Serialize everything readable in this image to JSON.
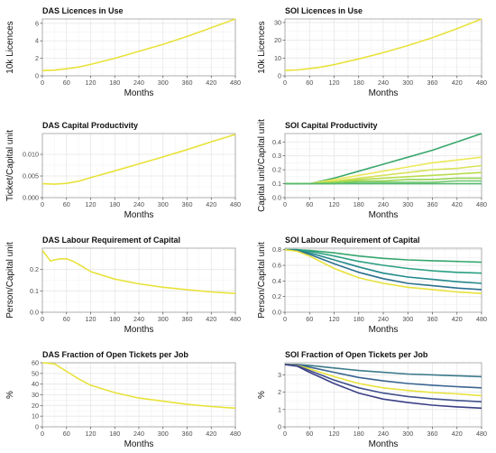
{
  "colors": {
    "yellow": "#e8e23a",
    "green_dark": "#3aa76d",
    "blue_dark": "#3b528b",
    "grid": "#e6e6e6",
    "panel_border": "#9e9e9e",
    "axis_text": "#4d4d4d"
  },
  "chart_data": [
    {
      "id": "das-licences",
      "type": "line",
      "title": "DAS Licences in Use",
      "xlabel": "Months",
      "ylabel": "10k Licences",
      "xlim": [
        0,
        480
      ],
      "ylim": [
        0,
        6.5
      ],
      "xticks": [
        0,
        60,
        120,
        180,
        240,
        300,
        360,
        420,
        480
      ],
      "yticks": [
        0,
        2,
        4,
        6
      ],
      "series": [
        {
          "color": "#e8e23a",
          "x": [
            0,
            30,
            60,
            90,
            120,
            180,
            240,
            300,
            360,
            420,
            480
          ],
          "y": [
            0.6,
            0.65,
            0.8,
            1.0,
            1.3,
            2.0,
            2.8,
            3.6,
            4.5,
            5.5,
            6.5
          ]
        }
      ]
    },
    {
      "id": "soi-licences",
      "type": "line",
      "title": "SOI Licences in Use",
      "xlabel": "Months",
      "ylabel": "10k Licences",
      "xlim": [
        0,
        480
      ],
      "ylim": [
        0,
        32
      ],
      "xticks": [
        0,
        60,
        120,
        180,
        240,
        300,
        360,
        420,
        480
      ],
      "yticks": [
        0,
        10,
        20,
        30
      ],
      "series": [
        {
          "color": "#e8e23a",
          "x": [
            0,
            30,
            60,
            90,
            120,
            180,
            240,
            300,
            360,
            420,
            480
          ],
          "y": [
            3.0,
            3.3,
            4.0,
            5.0,
            6.3,
            9.5,
            13.0,
            17.0,
            21.5,
            26.5,
            32.0
          ]
        }
      ]
    },
    {
      "id": "das-capital-productivity",
      "type": "line",
      "title": "DAS Capital Productivity",
      "xlabel": "Months",
      "ylabel": "Ticket/Capital unit",
      "xlim": [
        0,
        480
      ],
      "ylim": [
        0,
        0.0148
      ],
      "xticks": [
        0,
        60,
        120,
        180,
        240,
        300,
        360,
        420,
        480
      ],
      "yticks": [
        0,
        0.005,
        0.01
      ],
      "ytick_labels": [
        "0.000",
        "0.005",
        "0.010"
      ],
      "series": [
        {
          "color": "#e8e23a",
          "x": [
            0,
            30,
            60,
            90,
            120,
            180,
            240,
            300,
            360,
            420,
            480
          ],
          "y": [
            0.0032,
            0.0031,
            0.0033,
            0.0038,
            0.0046,
            0.0062,
            0.0078,
            0.0094,
            0.0111,
            0.0129,
            0.0146
          ]
        }
      ]
    },
    {
      "id": "soi-capital-productivity",
      "type": "line",
      "title": "SOI Capital Productivity",
      "xlabel": "Months",
      "ylabel": "Capital unit/Capital unit",
      "xlim": [
        0,
        480
      ],
      "ylim": [
        0,
        0.46
      ],
      "xticks": [
        0,
        60,
        120,
        180,
        240,
        300,
        360,
        420,
        480
      ],
      "yticks": [
        0,
        0.1,
        0.2,
        0.3,
        0.4
      ],
      "ytick_labels": [
        "0.0",
        "0.1",
        "0.2",
        "0.3",
        "0.4"
      ],
      "series": [
        {
          "color": "#3aa76d",
          "x": [
            0,
            60,
            120,
            180,
            240,
            300,
            360,
            420,
            480
          ],
          "y": [
            0.1,
            0.1,
            0.14,
            0.19,
            0.24,
            0.29,
            0.34,
            0.4,
            0.46
          ]
        },
        {
          "color": "#ece85a",
          "x": [
            0,
            60,
            120,
            180,
            240,
            300,
            360,
            420,
            480
          ],
          "y": [
            0.1,
            0.1,
            0.13,
            0.16,
            0.19,
            0.22,
            0.25,
            0.27,
            0.29
          ]
        },
        {
          "color": "#d8e25a",
          "x": [
            0,
            60,
            120,
            180,
            240,
            300,
            360,
            420,
            480
          ],
          "y": [
            0.1,
            0.1,
            0.12,
            0.14,
            0.16,
            0.18,
            0.2,
            0.21,
            0.23
          ]
        },
        {
          "color": "#b9dc4e",
          "x": [
            0,
            60,
            120,
            180,
            240,
            300,
            360,
            420,
            480
          ],
          "y": [
            0.1,
            0.1,
            0.11,
            0.13,
            0.14,
            0.15,
            0.16,
            0.17,
            0.18
          ]
        },
        {
          "color": "#94d452",
          "x": [
            0,
            60,
            120,
            180,
            240,
            300,
            360,
            420,
            480
          ],
          "y": [
            0.1,
            0.1,
            0.11,
            0.12,
            0.12,
            0.13,
            0.13,
            0.14,
            0.14
          ]
        },
        {
          "color": "#6fc66d",
          "x": [
            0,
            60,
            120,
            180,
            240,
            300,
            360,
            420,
            480
          ],
          "y": [
            0.1,
            0.1,
            0.1,
            0.11,
            0.11,
            0.11,
            0.11,
            0.12,
            0.12
          ]
        },
        {
          "color": "#55b96f",
          "x": [
            0,
            60,
            120,
            180,
            240,
            300,
            360,
            420,
            480
          ],
          "y": [
            0.1,
            0.1,
            0.1,
            0.1,
            0.1,
            0.1,
            0.1,
            0.1,
            0.1
          ]
        }
      ]
    },
    {
      "id": "das-labour-requirement",
      "type": "line",
      "title": "DAS Labour Requirement of Capital",
      "xlabel": "Months",
      "ylabel": "Person/Capital unit",
      "xlim": [
        0,
        480
      ],
      "ylim": [
        0,
        0.3
      ],
      "xticks": [
        0,
        60,
        120,
        180,
        240,
        300,
        360,
        420,
        480
      ],
      "yticks": [
        0,
        0.1,
        0.2
      ],
      "ytick_labels": [
        "0.0",
        "0.1",
        "0.2"
      ],
      "series": [
        {
          "color": "#e8e23a",
          "x": [
            0,
            10,
            20,
            30,
            45,
            60,
            75,
            90,
            120,
            180,
            240,
            300,
            360,
            420,
            480
          ],
          "y": [
            0.29,
            0.265,
            0.24,
            0.245,
            0.25,
            0.25,
            0.24,
            0.225,
            0.19,
            0.155,
            0.133,
            0.117,
            0.105,
            0.095,
            0.088
          ]
        }
      ]
    },
    {
      "id": "soi-labour-requirement",
      "type": "line",
      "title": "SOI Labour Requirement of Capital",
      "xlabel": "Months",
      "ylabel": "Person/Capital unit",
      "xlim": [
        0,
        480
      ],
      "ylim": [
        0,
        0.82
      ],
      "xticks": [
        0,
        60,
        120,
        180,
        240,
        300,
        360,
        420,
        480
      ],
      "yticks": [
        0,
        0.2,
        0.4,
        0.6,
        0.8
      ],
      "ytick_labels": [
        "0.0",
        "0.2",
        "0.4",
        "0.6",
        "0.8"
      ],
      "series": [
        {
          "color": "#35a66c",
          "x": [
            0,
            30,
            60,
            120,
            180,
            240,
            300,
            360,
            420,
            480
          ],
          "y": [
            0.8,
            0.8,
            0.79,
            0.76,
            0.72,
            0.69,
            0.67,
            0.66,
            0.65,
            0.64
          ]
        },
        {
          "color": "#2aa083",
          "x": [
            0,
            30,
            60,
            120,
            180,
            240,
            300,
            360,
            420,
            480
          ],
          "y": [
            0.8,
            0.8,
            0.78,
            0.72,
            0.65,
            0.6,
            0.56,
            0.53,
            0.51,
            0.5
          ]
        },
        {
          "color": "#23898d",
          "x": [
            0,
            30,
            60,
            120,
            180,
            240,
            300,
            360,
            420,
            480
          ],
          "y": [
            0.8,
            0.79,
            0.76,
            0.67,
            0.58,
            0.5,
            0.45,
            0.42,
            0.39,
            0.37
          ]
        },
        {
          "color": "#2c6f8e",
          "x": [
            0,
            30,
            60,
            120,
            180,
            240,
            300,
            360,
            420,
            480
          ],
          "y": [
            0.8,
            0.79,
            0.74,
            0.62,
            0.51,
            0.43,
            0.37,
            0.34,
            0.31,
            0.29
          ]
        },
        {
          "color": "#e8e23a",
          "x": [
            0,
            30,
            60,
            120,
            180,
            240,
            300,
            360,
            420,
            480
          ],
          "y": [
            0.8,
            0.78,
            0.72,
            0.56,
            0.44,
            0.37,
            0.32,
            0.29,
            0.26,
            0.24
          ]
        }
      ]
    },
    {
      "id": "das-fraction-open-tickets",
      "type": "line",
      "title": "DAS Fraction of Open Tickets per Job",
      "xlabel": "Months",
      "ylabel": "%",
      "xlim": [
        0,
        480
      ],
      "ylim": [
        0,
        60
      ],
      "xticks": [
        0,
        60,
        120,
        180,
        240,
        300,
        360,
        420,
        480
      ],
      "yticks": [
        0,
        10,
        20,
        30,
        40,
        50,
        60
      ],
      "series": [
        {
          "color": "#e8e23a",
          "x": [
            0,
            30,
            60,
            90,
            120,
            180,
            240,
            300,
            360,
            420,
            480
          ],
          "y": [
            60,
            59,
            52,
            45,
            39,
            32,
            27,
            24,
            21,
            19,
            17.5
          ]
        }
      ]
    },
    {
      "id": "soi-fraction-open-tickets",
      "type": "line",
      "title": "SOI Fraction of Open Tickets per Job",
      "xlabel": "Months",
      "ylabel": "%",
      "xlim": [
        0,
        480
      ],
      "ylim": [
        0,
        3.7
      ],
      "xticks": [
        0,
        60,
        120,
        180,
        240,
        300,
        360,
        420,
        480
      ],
      "yticks": [
        0,
        1,
        2,
        3
      ],
      "series": [
        {
          "color": "#3d7a8c",
          "x": [
            0,
            30,
            60,
            120,
            180,
            240,
            300,
            360,
            420,
            480
          ],
          "y": [
            3.6,
            3.6,
            3.55,
            3.4,
            3.25,
            3.15,
            3.05,
            3.0,
            2.95,
            2.9
          ]
        },
        {
          "color": "#3a6490",
          "x": [
            0,
            30,
            60,
            120,
            180,
            240,
            300,
            360,
            420,
            480
          ],
          "y": [
            3.6,
            3.58,
            3.45,
            3.15,
            2.85,
            2.65,
            2.5,
            2.4,
            2.32,
            2.25
          ]
        },
        {
          "color": "#e8e23a",
          "x": [
            0,
            30,
            60,
            120,
            180,
            240,
            300,
            360,
            420,
            480
          ],
          "y": [
            3.6,
            3.55,
            3.35,
            2.9,
            2.5,
            2.25,
            2.1,
            1.98,
            1.9,
            1.8
          ]
        },
        {
          "color": "#41508c",
          "x": [
            0,
            30,
            60,
            120,
            180,
            240,
            300,
            360,
            420,
            480
          ],
          "y": [
            3.6,
            3.53,
            3.25,
            2.7,
            2.25,
            1.95,
            1.75,
            1.62,
            1.52,
            1.45
          ]
        },
        {
          "color": "#3b3f85",
          "x": [
            0,
            30,
            60,
            120,
            180,
            240,
            300,
            360,
            420,
            480
          ],
          "y": [
            3.6,
            3.5,
            3.15,
            2.5,
            1.95,
            1.6,
            1.4,
            1.25,
            1.15,
            1.08
          ]
        }
      ]
    }
  ]
}
